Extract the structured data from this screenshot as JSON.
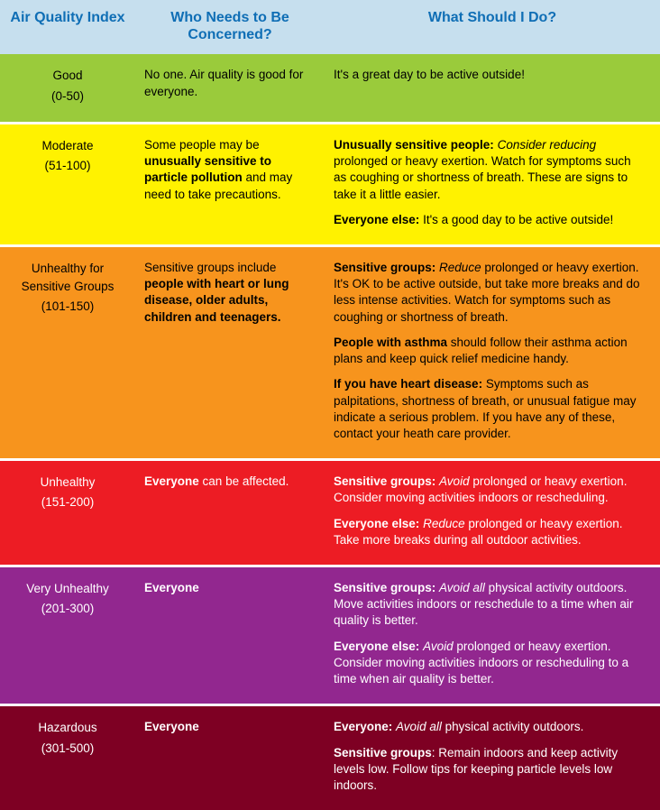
{
  "headers": {
    "col1": "Air Quality Index",
    "col2": "Who Needs to Be Concerned?",
    "col3": "What Should I Do?"
  },
  "rows": [
    {
      "id": "good",
      "bg": "#9acb3b",
      "fg": "#000000",
      "label": "Good",
      "range": "(0-50)",
      "concern_html": "No one. Air quality is good for everyone.",
      "action_html": "It's a great day to be active outside!"
    },
    {
      "id": "moderate",
      "bg": "#fff200",
      "fg": "#000000",
      "label": "Moderate",
      "range": "(51-100)",
      "concern_html": "Some people may be <b>unusually sensitive to particle pollution</b> and may need to take precautions.",
      "action_html": "<div class=\"para\"><b>Unusually sensitive people:</b> <i>Consider reducing</i> prolonged or heavy exertion. Watch for symptoms such as coughing or shortness of breath. These are signs to take it a little easier.</div><div class=\"para\"><b>Everyone else:</b> It's a good day to be active outside!</div>"
    },
    {
      "id": "usg",
      "bg": "#f7941d",
      "fg": "#000000",
      "label": "Unhealthy for Sensitive Groups",
      "range": "(101-150)",
      "concern_html": "Sensitive groups include <b>people with heart or lung disease, older adults, children and teenagers.</b>",
      "action_html": "<div class=\"para\"><b>Sensitive groups:</b> <i>Reduce</i> prolonged or heavy exertion.  It's OK to be active outside, but take more breaks and do less intense activities.  Watch for symptoms such as coughing or shortness of breath.</div><div class=\"para\"><b>People with asthma</b> should follow their asthma action plans and keep quick relief medicine handy.</div><div class=\"para\"><b>If you have heart disease:</b> Symptoms such as palpitations, shortness of breath, or unusual fatigue may indicate a serious problem. If you have any of these, contact your heath care provider.</div>"
    },
    {
      "id": "unhealthy",
      "bg": "#ed1c24",
      "fg": "#ffffff",
      "label": "Unhealthy",
      "range": "(151-200)",
      "concern_html": "<b>Everyone</b> can be affected.",
      "action_html": "<div class=\"para\"><b>Sensitive groups:</b> <i>Avoid</i> prolonged or heavy exertion. Consider moving activities indoors or rescheduling.</div><div class=\"para\"><b>Everyone else:</b> <i>Reduce</i> prolonged or heavy exertion. Take more breaks during all outdoor activities.</div>"
    },
    {
      "id": "very-unhealthy",
      "bg": "#92278f",
      "fg": "#ffffff",
      "label": "Very Unhealthy",
      "range": "(201-300)",
      "concern_html": "<b>Everyone</b>",
      "action_html": "<div class=\"para\"><b>Sensitive groups:</b> <i>Avoid all</i> physical activity outdoors. Move activities indoors or reschedule to a time when air quality is better.</div><div class=\"para\"><b>Everyone else:</b> <i>Avoid</i> prolonged or heavy exertion. Consider moving activities indoors or rescheduling to a time when air quality is better.</div>"
    },
    {
      "id": "hazardous",
      "bg": "#7e0023",
      "fg": "#ffffff",
      "label": "Hazardous",
      "range": "(301-500)",
      "concern_html": "<b>Everyone</b>",
      "action_html": "<div class=\"para\"><b>Everyone:</b> <i>Avoid all</i> physical activity outdoors.</div><div class=\"para\"><b>Sensitive groups</b>: Remain indoors and keep activity levels low. Follow tips for keeping particle levels low indoors.</div>"
    }
  ],
  "style": {
    "header_bg": "#c6dfee",
    "header_fg": "#0f6eb5",
    "row_gap_color": "#ffffff"
  }
}
